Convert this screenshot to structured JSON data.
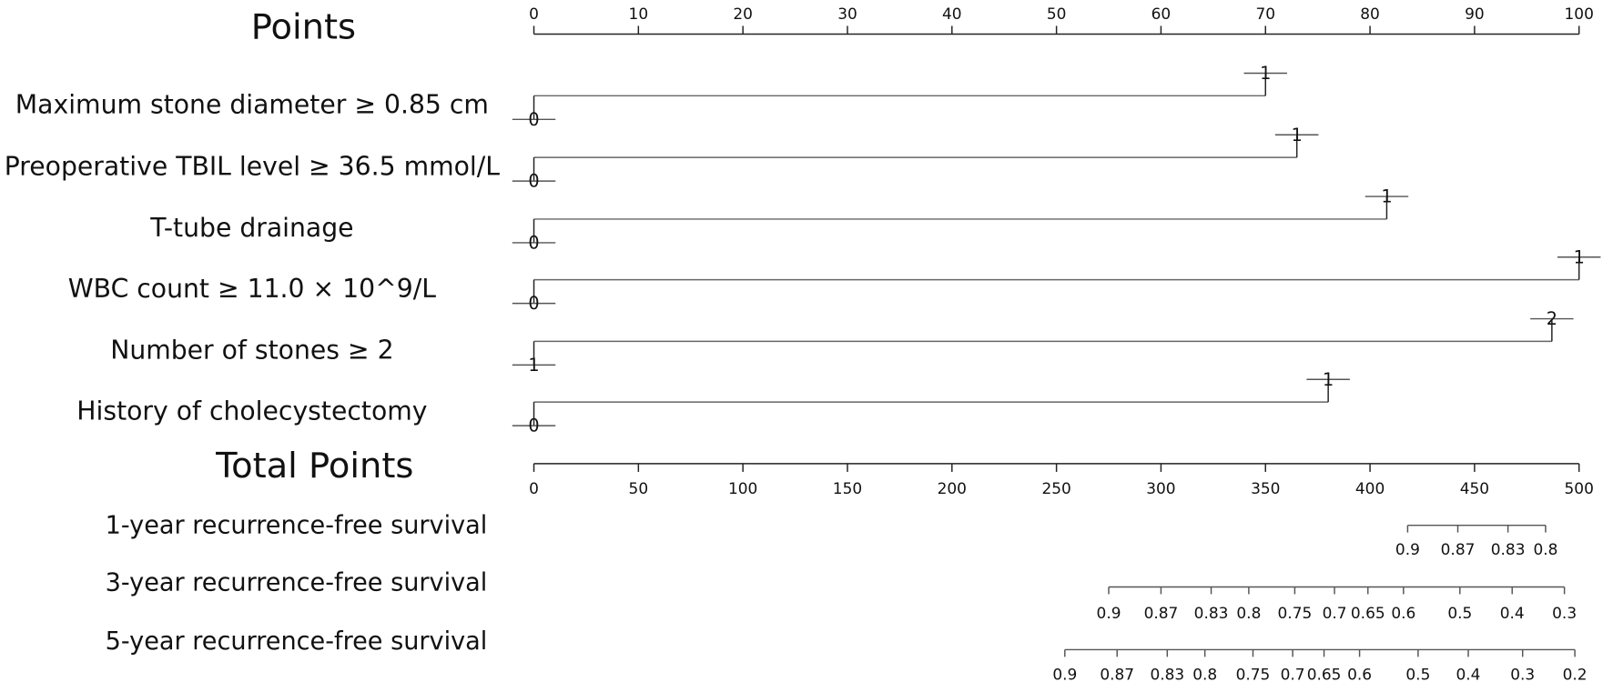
{
  "chart_data": {
    "type": "nomogram",
    "points_axis": {
      "title": "Points",
      "xlim": [
        0,
        100
      ],
      "xticks": [
        0,
        10,
        20,
        30,
        40,
        50,
        60,
        70,
        80,
        90,
        100
      ]
    },
    "variables": [
      {
        "label": "Maximum stone diameter ≥ 0.85 cm",
        "levels": [
          "0",
          "1"
        ],
        "points": [
          0,
          70
        ]
      },
      {
        "label": "Preoperative TBIL level ≥ 36.5 mmol/L",
        "levels": [
          "0",
          "1"
        ],
        "points": [
          0,
          73
        ]
      },
      {
        "label": "T-tube drainage",
        "levels": [
          "0",
          "1"
        ],
        "points": [
          0,
          81.6
        ]
      },
      {
        "label": "WBC count ≥ 11.0 × 10^9/L",
        "levels": [
          "0",
          "1"
        ],
        "points": [
          0,
          100
        ]
      },
      {
        "label": "Number of stones ≥ 2",
        "levels": [
          "1",
          "2"
        ],
        "points": [
          0,
          97.4
        ]
      },
      {
        "label": "History of cholecystectomy",
        "levels": [
          "0",
          "1"
        ],
        "points": [
          0,
          76
        ]
      }
    ],
    "total_points_axis": {
      "title": "Total Points",
      "xlim": [
        0,
        500
      ],
      "xticks": [
        0,
        50,
        100,
        150,
        200,
        250,
        300,
        350,
        400,
        450,
        500
      ]
    },
    "survival_axes": [
      {
        "label": "1-year recurrence-free survival",
        "ticks": [
          {
            "value": 418,
            "label": "0.9"
          },
          {
            "value": 442,
            "label": "0.87"
          },
          {
            "value": 466,
            "label": "0.83"
          },
          {
            "value": 484,
            "label": "0.8"
          }
        ]
      },
      {
        "label": "3-year recurrence-free survival",
        "ticks": [
          {
            "value": 275,
            "label": "0.9"
          },
          {
            "value": 300,
            "label": "0.87"
          },
          {
            "value": 324,
            "label": "0.83"
          },
          {
            "value": 342,
            "label": "0.8"
          },
          {
            "value": 364,
            "label": "0.75"
          },
          {
            "value": 383,
            "label": "0.7"
          },
          {
            "value": 399,
            "label": "0.65"
          },
          {
            "value": 416,
            "label": "0.6"
          },
          {
            "value": 443,
            "label": "0.5"
          },
          {
            "value": 468,
            "label": "0.4"
          },
          {
            "value": 493,
            "label": "0.3"
          }
        ]
      },
      {
        "label": "5-year recurrence-free survival",
        "ticks": [
          {
            "value": 254,
            "label": "0.9"
          },
          {
            "value": 279,
            "label": "0.87"
          },
          {
            "value": 303,
            "label": "0.83"
          },
          {
            "value": 321,
            "label": "0.8"
          },
          {
            "value": 344,
            "label": "0.75"
          },
          {
            "value": 363,
            "label": "0.7"
          },
          {
            "value": 378,
            "label": "0.65"
          },
          {
            "value": 395,
            "label": "0.6"
          },
          {
            "value": 423,
            "label": "0.5"
          },
          {
            "value": 447,
            "label": "0.4"
          },
          {
            "value": 473,
            "label": "0.3"
          },
          {
            "value": 498,
            "label": "0.2"
          }
        ]
      }
    ]
  }
}
